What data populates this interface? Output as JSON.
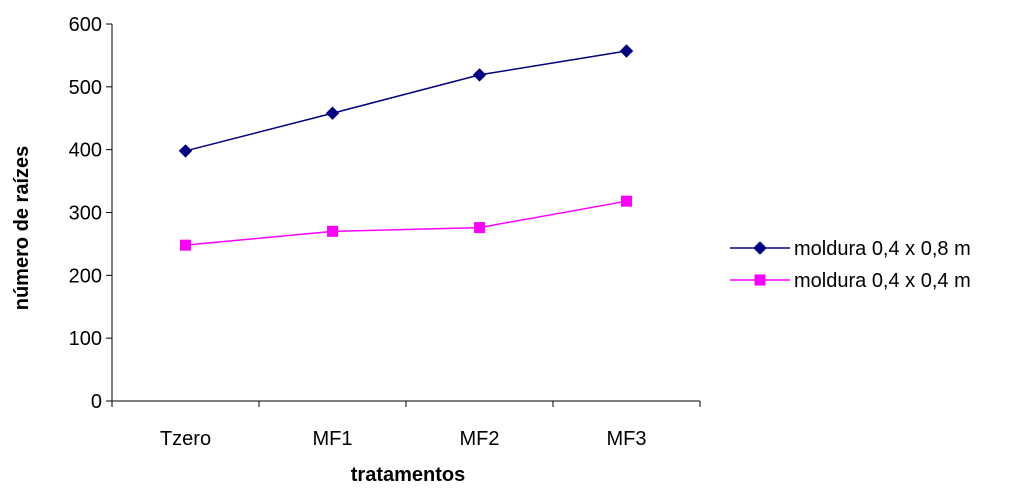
{
  "chart_data": {
    "type": "line",
    "categories": [
      "Tzero",
      "MF1",
      "MF2",
      "MF3"
    ],
    "series": [
      {
        "name": "moldura 0,4 x 0,8 m",
        "values": [
          398,
          458,
          519,
          557
        ],
        "color": "#000080",
        "marker": "diamond"
      },
      {
        "name": "moldura 0,4 x 0,4 m",
        "values": [
          248,
          270,
          276,
          318
        ],
        "color": "#FF00FF",
        "marker": "square"
      }
    ],
    "xlabel": "tratamentos",
    "ylabel": "número de raízes",
    "ylim": [
      0,
      600
    ],
    "yticks": [
      0,
      100,
      200,
      300,
      400,
      500,
      600
    ],
    "grid": false,
    "legend": "right"
  }
}
